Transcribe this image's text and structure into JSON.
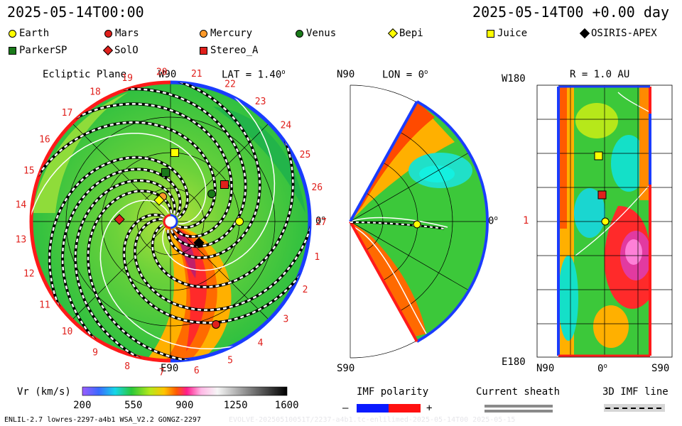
{
  "header": {
    "left_time": "2025-05-14T00:00",
    "right_time": "2025-05-14T00 +0.00 day"
  },
  "legend": [
    {
      "name": "Earth",
      "shape": "circle",
      "color": "#ffff00"
    },
    {
      "name": "Mars",
      "shape": "circle",
      "color": "#e0201c"
    },
    {
      "name": "Mercury",
      "shape": "circle",
      "color": "#ff9a2a"
    },
    {
      "name": "Venus",
      "shape": "circle",
      "color": "#1a7a1a"
    },
    {
      "name": "Bepi",
      "shape": "diamond",
      "color": "#ffff00"
    },
    {
      "name": "Juice",
      "shape": "square",
      "color": "#ffff00"
    },
    {
      "name": "OSIRIS-APEX",
      "shape": "diamond",
      "color": "#000000"
    },
    {
      "name": "ParkerSP",
      "shape": "square",
      "color": "#1a7a1a"
    },
    {
      "name": "SolO",
      "shape": "diamond",
      "color": "#e0201c"
    },
    {
      "name": "Stereo_A",
      "shape": "square",
      "color": "#e0201c"
    }
  ],
  "ecliptic": {
    "title": "Ecliptic Plane",
    "lat_label": "LAT = 1.40",
    "lat_sup": "o",
    "top_label": "W90",
    "bottom_label": "E90",
    "right_label": "0",
    "right_sup": "o",
    "carrington": [
      "27",
      "1",
      "2",
      "3",
      "4",
      "5",
      "6",
      "7",
      "8",
      "9",
      "10",
      "11",
      "12",
      "13",
      "14",
      "15",
      "16",
      "17",
      "18",
      "19",
      "20",
      "21",
      "22",
      "23",
      "24",
      "25",
      "26"
    ]
  },
  "meridional": {
    "lon_label": "LON = 0",
    "lon_sup": "o",
    "top_label": "N90",
    "bottom_label": "S90",
    "right_label": "0",
    "right_sup": "o"
  },
  "radial": {
    "title": "R = 1.0 AU",
    "top_left": "W180",
    "bottom_left": "E180",
    "mid_left": "1",
    "x_left": "N90",
    "x_mid": "0",
    "x_mid_sup": "o",
    "x_right": "S90"
  },
  "colorbar": {
    "label": "Vr (km/s)",
    "ticks": [
      "200",
      "550",
      "900",
      "1250",
      "1600"
    ]
  },
  "imf": {
    "title": "IMF polarity",
    "minus": "–",
    "plus": "+"
  },
  "sheath": {
    "title": "Current sheath"
  },
  "imf3d": {
    "title": "3D IMF line"
  },
  "footer": {
    "left": "ENLIL-2.7 lowres-2297-a4b1 WSA_V2.2 GONGZ-2297",
    "right": "EVOLVE-20250510051T/2237-a4b1.tc-enlilimed-2025-05-14T00  2025-05-15"
  }
}
